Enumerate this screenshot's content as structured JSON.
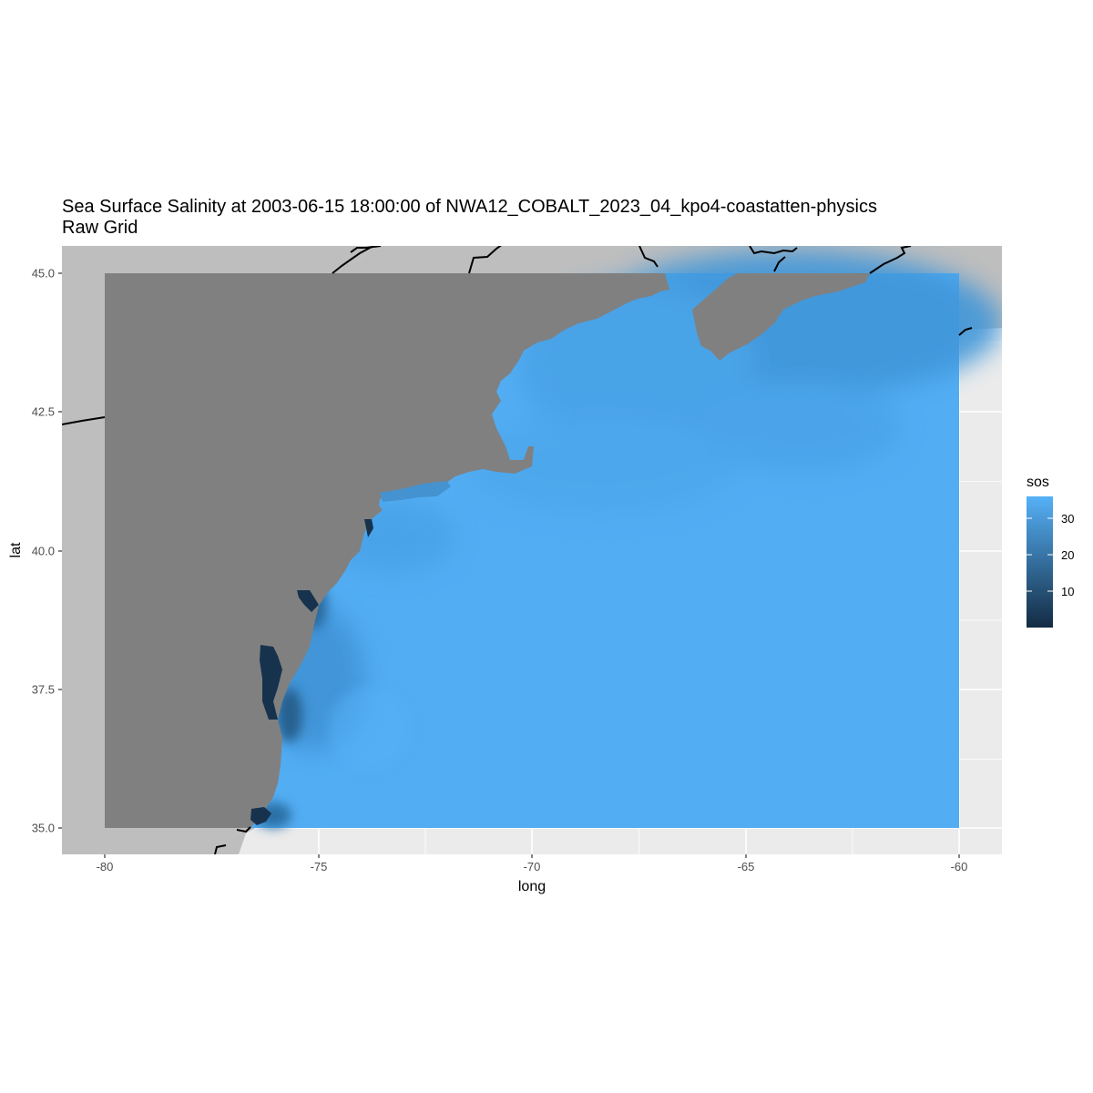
{
  "chart_data": {
    "type": "heatmap",
    "title": "Sea Surface Salinity at 2003-06-15 18:00:00 of NWA12_COBALT_2023_04_kpo4-coastatten-physics",
    "subtitle": "Raw Grid",
    "xlabel": "long",
    "ylabel": "lat",
    "xlim": [
      -81,
      -59
    ],
    "ylim": [
      34.55,
      45.5
    ],
    "x_ticks": [
      -80,
      -75,
      -70,
      -65,
      -60
    ],
    "x_tick_labels": [
      "-80",
      "-75",
      "-70",
      "-65",
      "-60"
    ],
    "y_ticks": [
      35.0,
      37.5,
      40.0,
      42.5,
      45.0
    ],
    "y_tick_labels": [
      "35.0",
      "37.5",
      "40.0",
      "42.5",
      "45.0"
    ],
    "grid_extent": {
      "lon": [
        -80,
        -60
      ],
      "lat": [
        35,
        45
      ]
    },
    "legend": {
      "title": "sos",
      "position": "right",
      "breaks": [
        10,
        20,
        30
      ],
      "break_labels": [
        "10",
        "20",
        "30"
      ],
      "range": [
        1,
        37
      ]
    },
    "colors": {
      "low": "#132b43",
      "high": "#56b1f7",
      "land_mask": "#808080",
      "panel": "#ebebeb",
      "basemap_land": "#bebebe",
      "coastline": "#000000",
      "grid": "#ffffff"
    },
    "salinity_samples": [
      {
        "lon": -60.5,
        "lat": 44.5,
        "sos": 31
      },
      {
        "lon": -66.5,
        "lat": 44.7,
        "sos": 32
      },
      {
        "lon": -68.5,
        "lat": 43.0,
        "sos": 31
      },
      {
        "lon": -70.0,
        "lat": 41.5,
        "sos": 32
      },
      {
        "lon": -73.5,
        "lat": 40.3,
        "sos": 30
      },
      {
        "lon": -75.3,
        "lat": 39.0,
        "sos": 15
      },
      {
        "lon": -76.3,
        "lat": 37.8,
        "sos": 6
      },
      {
        "lon": -75.8,
        "lat": 36.9,
        "sos": 24
      },
      {
        "lon": -76.0,
        "lat": 35.3,
        "sos": 12
      },
      {
        "lon": -72.0,
        "lat": 37.0,
        "sos": 35
      },
      {
        "lon": -65.0,
        "lat": 38.0,
        "sos": 36
      },
      {
        "lon": -62.0,
        "lat": 36.0,
        "sos": 36
      }
    ]
  }
}
